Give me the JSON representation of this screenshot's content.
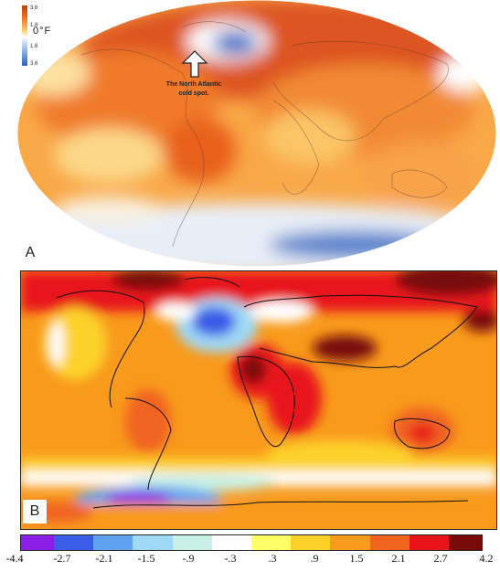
{
  "panel_a": {
    "label": "A",
    "legend": {
      "unit": "0°F",
      "ticks": [
        "3.6",
        "1.8",
        "1.8",
        "3.6"
      ],
      "colors": [
        "#c04010",
        "#f07020",
        "#ffd070",
        "#ffffff",
        "#9ec4e8",
        "#2f62c0"
      ]
    },
    "annotation_lines": [
      "The North Atlantic",
      "cold spot."
    ]
  },
  "panel_b": {
    "label": "B",
    "colorbar": {
      "ticks": [
        "-4.4",
        "-2.7",
        "-2.1",
        "-1.5",
        "-.9",
        "-.3",
        ".3",
        ".9",
        "1.5",
        "2.1",
        "2.7",
        "4.2"
      ],
      "colors": [
        "#8a1ee6",
        "#3a5ce6",
        "#5ea2f0",
        "#9fd8f4",
        "#c8f0e6",
        "#ffffff",
        "#ffff66",
        "#fcd22a",
        "#f89a1c",
        "#f06420",
        "#e8141a",
        "#780a0a"
      ]
    }
  }
}
